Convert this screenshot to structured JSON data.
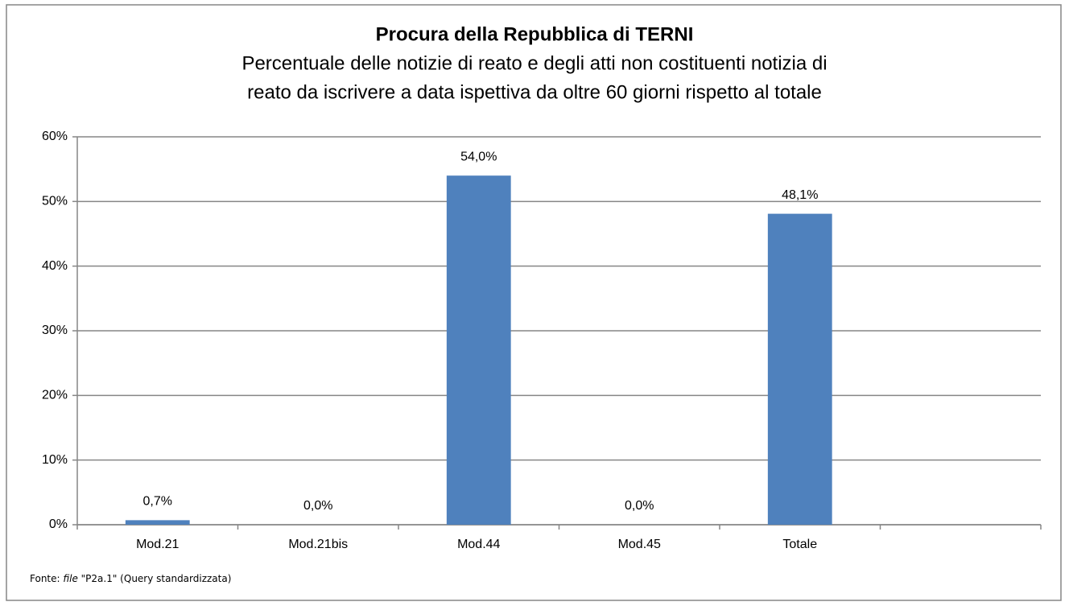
{
  "chart_data": {
    "type": "bar",
    "title": "Procura della Repubblica di TERNI",
    "subtitle": [
      "Percentuale delle notizie di reato e degli atti non costituenti notizia di",
      "reato da iscrivere a data ispettiva da oltre 60 giorni rispetto al totale"
    ],
    "categories": [
      "Mod.21",
      "Mod.21bis",
      "Mod.44",
      "Mod.45",
      "Totale",
      null
    ],
    "values": [
      0.7,
      0,
      54.0,
      0,
      48.1,
      null
    ],
    "value_labels": [
      "0,7%",
      "0,0%",
      "54,0%",
      "0,0%",
      "48,1%",
      null
    ],
    "color": "#4f81bd",
    "ylim": [
      0,
      60
    ],
    "yticks": [
      {
        "value": 0,
        "label": "0%"
      },
      {
        "value": 10,
        "label": "10%"
      },
      {
        "value": 20,
        "label": "20%"
      },
      {
        "value": 30,
        "label": "30%"
      },
      {
        "value": 40,
        "label": "40%"
      },
      {
        "value": 50,
        "label": "50%"
      },
      {
        "value": 60,
        "label": "60%"
      }
    ],
    "grid": true,
    "source": [
      "Fonte: ",
      "file",
      " \"P2a.1\" (Query standardizzata)"
    ]
  }
}
